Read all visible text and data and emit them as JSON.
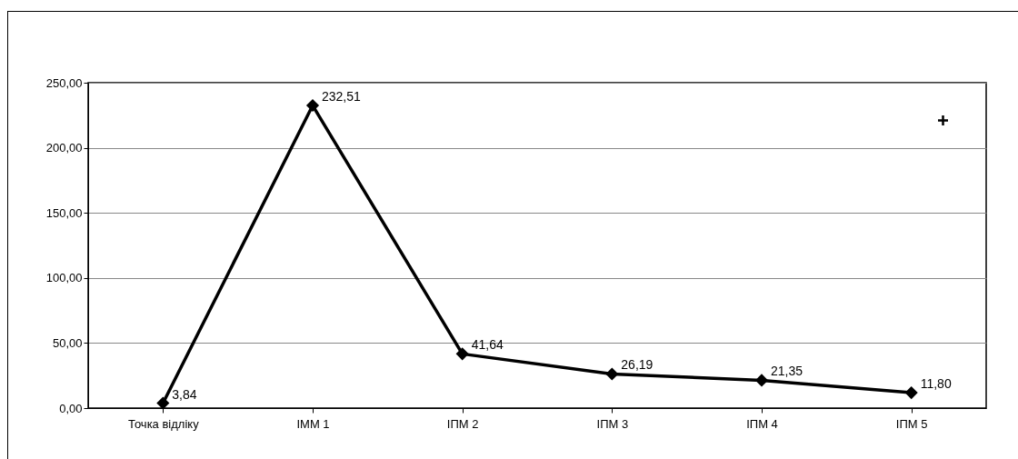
{
  "chart_data": {
    "type": "line",
    "categories": [
      "Точка відліку",
      "ІММ 1",
      "ІПМ 2",
      "ІПМ 3",
      "ІПМ 4",
      "ІПМ 5"
    ],
    "series": [
      {
        "color": "#000000",
        "values": [
          3.84,
          232.51,
          41.64,
          26.19,
          21.35,
          11.8
        ],
        "value_labels": [
          "3,84",
          "232,51",
          "41,64",
          "26,19",
          "21,35",
          "11,80"
        ]
      }
    ],
    "ylim": [
      0,
      250
    ],
    "yticks": [
      {
        "value": 0,
        "label": "0,00"
      },
      {
        "value": 50,
        "label": "50,00"
      },
      {
        "value": 100,
        "label": "100,00"
      },
      {
        "value": 150,
        "label": "150,00"
      },
      {
        "value": 200,
        "label": "200,00"
      },
      {
        "value": 250,
        "label": "250,00"
      }
    ],
    "grid": "y",
    "marker": "diamond",
    "line_style": "solid",
    "legend": false
  }
}
